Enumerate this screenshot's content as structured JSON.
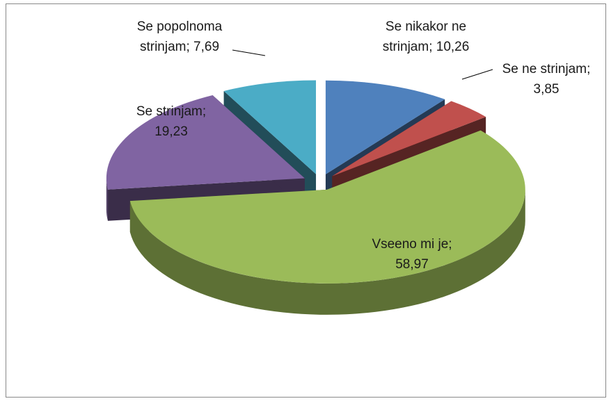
{
  "chart_data": {
    "type": "pie3d",
    "categories": [
      "Se nikakor ne strinjam;",
      "Se ne strinjam;",
      "Vseeno mi je;",
      "Se strinjam;",
      "Se popolnoma strinjam;"
    ],
    "values": [
      10.26,
      3.85,
      58.97,
      19.23,
      7.69
    ],
    "value_labels": [
      "10,26",
      "3,85",
      "58,97",
      "19,23",
      "7,69"
    ],
    "colors": [
      "#4f81bd",
      "#c0504d",
      "#9bbb59",
      "#8064a2",
      "#4bacc6"
    ]
  }
}
